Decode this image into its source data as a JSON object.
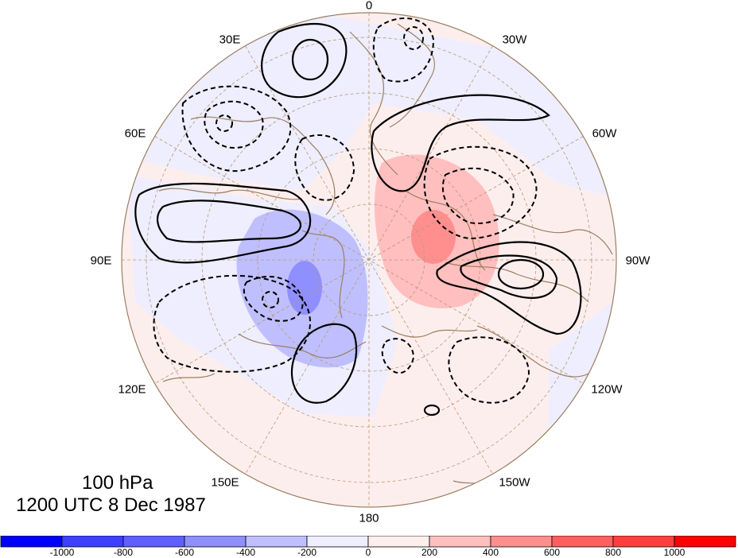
{
  "title": {
    "level": "100 hPa",
    "time": "1200 UTC 8 Dec 1987"
  },
  "projection": "north polar stereographic",
  "longitude_labels": [
    {
      "key": "0",
      "text": "0"
    },
    {
      "key": "30W",
      "text": "30W"
    },
    {
      "key": "60W",
      "text": "60W"
    },
    {
      "key": "90W",
      "text": "90W"
    },
    {
      "key": "120W",
      "text": "120W"
    },
    {
      "key": "150W",
      "text": "150W"
    },
    {
      "key": "180",
      "text": "180"
    },
    {
      "key": "150E",
      "text": "150E"
    },
    {
      "key": "120E",
      "text": "120E"
    },
    {
      "key": "90E",
      "text": "90E"
    },
    {
      "key": "60E",
      "text": "60E"
    },
    {
      "key": "30E",
      "text": "30E"
    }
  ],
  "colorbar": {
    "colors": [
      "#0000ff",
      "#3f3fff",
      "#5f5fff",
      "#8f8fff",
      "#bfbfff",
      "#eeeeff",
      "#ffeeee",
      "#ffbfbf",
      "#ff8f8f",
      "#ff5f5f",
      "#ff3f3f",
      "#ff0000"
    ],
    "tick_labels": [
      "-1000",
      "-800",
      "-600",
      "-400",
      "-200",
      "0",
      "200",
      "400",
      "600",
      "800",
      "1000"
    ]
  },
  "colors": {
    "coastline": "#9c7f5f",
    "grid": "#b89a70",
    "contour": "#000000"
  }
}
